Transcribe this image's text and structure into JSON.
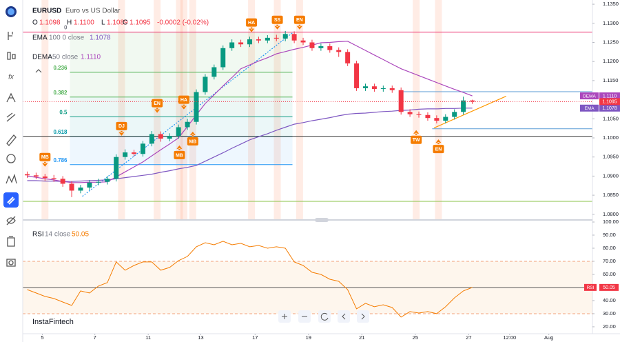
{
  "header": {
    "symbol": "EURUSD",
    "description": "Euro vs US Dollar",
    "ohlc": [
      {
        "label": "O",
        "value": "1.1098"
      },
      {
        "label": "H",
        "value": "1.1100"
      },
      {
        "label": "L",
        "value": "1.1089"
      },
      {
        "label": "C",
        "value": "1.1095"
      }
    ],
    "change": "-0.0002 (-0.02%)"
  },
  "brand": "InstaFintech",
  "chart_data": [
    {
      "type": "candlestick",
      "up_color": "#089981",
      "down_color": "#f23645",
      "open": [
        1.0905,
        1.0902,
        1.0899,
        1.0895,
        1.0893,
        1.088,
        1.0862,
        1.087,
        1.0883,
        1.0885,
        1.0893,
        1.095,
        1.0962,
        1.0958,
        1.0985,
        1.101,
        1.0998,
        1.1005,
        1.1028,
        1.1042,
        1.112,
        1.116,
        1.1185,
        1.1235,
        1.125,
        1.1245,
        1.1258,
        1.1255,
        1.1262,
        1.126,
        1.1272,
        1.1255,
        1.125,
        1.1235,
        1.124,
        1.123,
        1.1225,
        1.1195,
        1.113,
        1.1135,
        1.1128,
        1.113,
        1.1125,
        1.1068,
        1.1062,
        1.106,
        1.1052,
        1.1045,
        1.1055,
        1.1068,
        1.1098
      ],
      "high": [
        1.0912,
        1.0909,
        1.0906,
        1.0903,
        1.09,
        1.0887,
        1.0877,
        1.089,
        1.0893,
        1.09,
        1.0957,
        1.097,
        1.0969,
        1.0992,
        1.1018,
        1.1017,
        1.1012,
        1.1035,
        1.105,
        1.1127,
        1.1167,
        1.1192,
        1.1242,
        1.1258,
        1.1257,
        1.1265,
        1.1265,
        1.1269,
        1.127,
        1.128,
        1.1279,
        1.1262,
        1.1257,
        1.1247,
        1.1247,
        1.1237,
        1.1232,
        1.1202,
        1.1142,
        1.1142,
        1.1137,
        1.1137,
        1.1132,
        1.1075,
        1.1069,
        1.1067,
        1.1059,
        1.1062,
        1.1075,
        1.1108,
        1.11
      ],
      "low": [
        1.0895,
        1.0892,
        1.0888,
        1.0885,
        1.0872,
        1.0845,
        1.0855,
        1.0863,
        1.0876,
        1.0878,
        1.0886,
        1.0943,
        1.0951,
        1.0951,
        1.0978,
        1.099,
        1.0991,
        1.0998,
        1.1021,
        1.1035,
        1.1113,
        1.1153,
        1.1178,
        1.1228,
        1.1238,
        1.1238,
        1.1248,
        1.1248,
        1.1253,
        1.1253,
        1.1248,
        1.1243,
        1.1228,
        1.1228,
        1.1223,
        1.1212,
        1.1188,
        1.1123,
        1.1123,
        1.1121,
        1.1121,
        1.1118,
        1.1061,
        1.1055,
        1.1053,
        1.1045,
        1.1038,
        1.1038,
        1.1048,
        1.1061,
        1.1089
      ],
      "close": [
        1.0902,
        1.0899,
        1.0895,
        1.0893,
        1.088,
        1.0862,
        1.087,
        1.0883,
        1.0885,
        1.0893,
        1.095,
        1.0962,
        1.0958,
        1.0985,
        1.101,
        1.0998,
        1.1005,
        1.1028,
        1.1042,
        1.112,
        1.116,
        1.1185,
        1.1235,
        1.125,
        1.1245,
        1.1258,
        1.1255,
        1.1262,
        1.126,
        1.1272,
        1.1255,
        1.125,
        1.1235,
        1.124,
        1.123,
        1.1225,
        1.1195,
        1.113,
        1.1135,
        1.1128,
        1.113,
        1.1125,
        1.1068,
        1.1062,
        1.106,
        1.1052,
        1.1045,
        1.1055,
        1.1068,
        1.1098,
        1.1095
      ],
      "series": [
        {
          "name": "EMA",
          "params": "100 0 close",
          "last": "1.1078",
          "color": "#7e57c2",
          "values": [
            1.0888,
            1.0888,
            1.0887,
            1.0887,
            1.0886,
            1.0886,
            1.0887,
            1.0888,
            1.0889,
            1.089,
            1.0893,
            1.0896,
            1.0899,
            1.0902,
            1.0905,
            1.091,
            1.0914,
            1.0919,
            1.0923,
            1.0928,
            1.0939,
            1.095,
            1.0961,
            1.0973,
            1.0984,
            1.0995,
            1.1003,
            1.1011,
            1.102,
            1.1028,
            1.1036,
            1.104,
            1.1045,
            1.1049,
            1.1053,
            1.1058,
            1.1062,
            1.1064,
            1.1065,
            1.1067,
            1.1069,
            1.107,
            1.1072,
            1.1073,
            1.1075,
            1.1076,
            1.1076,
            1.1077,
            1.1077,
            1.1078,
            1.1078
          ]
        },
        {
          "name": "DEMA",
          "params": "50 close",
          "last": "1.1110",
          "color": "#ab47bc",
          "values": [
            1.09,
            1.0897,
            1.0893,
            1.089,
            1.0886,
            1.0883,
            1.0883,
            1.0884,
            1.0884,
            1.0885,
            1.0898,
            1.0911,
            1.0924,
            1.0937,
            1.0953,
            1.0969,
            1.0984,
            1.1,
            1.103,
            1.106,
            1.109,
            1.1113,
            1.1136,
            1.1158,
            1.1181,
            1.1191,
            1.1201,
            1.121,
            1.122,
            1.1226,
            1.1232,
            1.1237,
            1.1243,
            1.1249,
            1.125,
            1.1252,
            1.1253,
            1.1241,
            1.1229,
            1.1217,
            1.1205,
            1.1193,
            1.1181,
            1.1172,
            1.1163,
            1.1154,
            1.1145,
            1.1136,
            1.1127,
            1.1119,
            1.111
          ]
        }
      ],
      "xlim": [
        -0.5,
        63.5
      ],
      "xticks": [
        {
          "value": 1.7,
          "label": "5"
        },
        {
          "value": 7.6,
          "label": "7"
        },
        {
          "value": 13.6,
          "label": "11"
        },
        {
          "value": 19.5,
          "label": "13"
        },
        {
          "value": 25.6,
          "label": "17"
        },
        {
          "value": 31.6,
          "label": "19"
        },
        {
          "value": 37.6,
          "label": "21"
        },
        {
          "value": 43.6,
          "label": "25"
        },
        {
          "value": 49.6,
          "label": "27"
        },
        {
          "value": 54.2,
          "label": "12:00"
        },
        {
          "value": 58.6,
          "label": "Aug"
        }
      ],
      "ylim": [
        1.0787,
        1.1361
      ],
      "yticks": [
        {
          "value": 1.135,
          "label": "1.1350"
        },
        {
          "value": 1.13,
          "label": "1.1300"
        },
        {
          "value": 1.125,
          "label": "1.1250"
        },
        {
          "value": 1.12,
          "label": "1.1200"
        },
        {
          "value": 1.115,
          "label": "1.1150"
        },
        {
          "value": 1.105,
          "label": "1.1050"
        },
        {
          "value": 1.1,
          "label": "1.1000"
        },
        {
          "value": 1.095,
          "label": "1.0950"
        },
        {
          "value": 1.09,
          "label": "1.0900"
        },
        {
          "value": 1.085,
          "label": "1.0850"
        },
        {
          "value": 1.08,
          "label": "1.0800"
        }
      ],
      "fib_range": [
        4.8,
        29.8
      ],
      "fib": [
        {
          "level": 0,
          "price": 1.1277,
          "color": "#787b86"
        },
        {
          "level": 0.236,
          "price": 1.1172,
          "color": "#4caf50"
        },
        {
          "level": 0.382,
          "price": 1.1107,
          "color": "#4caf50"
        },
        {
          "level": 0.5,
          "price": 1.1055,
          "color": "#089981"
        },
        {
          "level": 0.618,
          "price": 1.1004,
          "color": "#0097a7"
        },
        {
          "level": 0.786,
          "price": 1.093,
          "color": "#2196f3"
        }
      ],
      "hlines": [
        {
          "price": 1.1277,
          "color": "#e91e63"
        },
        {
          "price": 1.1004,
          "color": "#333333"
        },
        {
          "price": 1.0834,
          "color": "#8bc34a"
        },
        {
          "price": 1.1121,
          "color": "#5b9bd5",
          "from": 42
        },
        {
          "price": 1.1024,
          "color": "#5b9bd5",
          "from": 45.5
        }
      ],
      "trendlines": [
        {
          "x": [
            6.2,
            29.8
          ],
          "y": [
            1.0847,
            1.1275
          ],
          "color": "#2196f3",
          "dashed": true
        },
        {
          "x": [
            45.7,
            53.8
          ],
          "y": [
            1.1026,
            1.1109
          ],
          "color": "#ff9800",
          "dashed": false
        }
      ],
      "annotations": [
        {
          "label": "MB",
          "x": 2,
          "price": 1.095,
          "dir": "down"
        },
        {
          "label": "DJ",
          "x": 10.6,
          "price": 1.1031,
          "dir": "down"
        },
        {
          "label": "EN",
          "x": 14.6,
          "price": 1.1091,
          "dir": "down"
        },
        {
          "label": "MB",
          "x": 17.1,
          "price": 1.0955,
          "dir": "up"
        },
        {
          "label": "HA",
          "x": 17.6,
          "price": 1.11,
          "dir": "down"
        },
        {
          "label": "MB",
          "x": 18.6,
          "price": 1.0991,
          "dir": "up"
        },
        {
          "label": "HA",
          "x": 25.2,
          "price": 1.1302,
          "dir": "down"
        },
        {
          "label": "SS",
          "x": 28.1,
          "price": 1.1309,
          "dir": "down"
        },
        {
          "label": "EN",
          "x": 30.6,
          "price": 1.1309,
          "dir": "down"
        },
        {
          "label": "TW",
          "x": 43.7,
          "price": 1.0995,
          "dir": "up"
        },
        {
          "label": "EN",
          "x": 46.2,
          "price": 1.0971,
          "dir": "up"
        }
      ]
    },
    {
      "type": "line",
      "params": "14 close",
      "series": [
        {
          "name": "RSI",
          "color": "#f57c00",
          "values": [
            48.4,
            45.8,
            43.2,
            41.6,
            38.9,
            36.3,
            47.4,
            45.8,
            51.1,
            53.7,
            69.5,
            63.2,
            66.8,
            69.5,
            69.5,
            63.2,
            65.3,
            70.5,
            73.7,
            81.1,
            84.2,
            82.6,
            85.3,
            82.6,
            83.7,
            81.1,
            82.1,
            80.0,
            81.1,
            80.0,
            69.5,
            66.8,
            61.6,
            60.0,
            56.3,
            54.7,
            48.4,
            33.7,
            37.9,
            35.3,
            36.8,
            34.7,
            27.4,
            31.6,
            30.5,
            31.6,
            30.0,
            35.3,
            42.1,
            47.4,
            50.05
          ]
        }
      ],
      "levels": [
        70,
        50,
        30
      ],
      "ylim": [
        14.7,
        102.1
      ],
      "yticks": [
        {
          "value": 100,
          "label": "100.00"
        },
        {
          "value": 90,
          "label": "90.00"
        },
        {
          "value": 80,
          "label": "80.00"
        },
        {
          "value": 70,
          "label": "70.00"
        },
        {
          "value": 60,
          "label": "60.00"
        },
        {
          "value": 50,
          "label": "50.00"
        },
        {
          "value": 40,
          "label": "40.00"
        },
        {
          "value": 30,
          "label": "30.00"
        },
        {
          "value": 20,
          "label": "20.00"
        }
      ]
    }
  ]
}
